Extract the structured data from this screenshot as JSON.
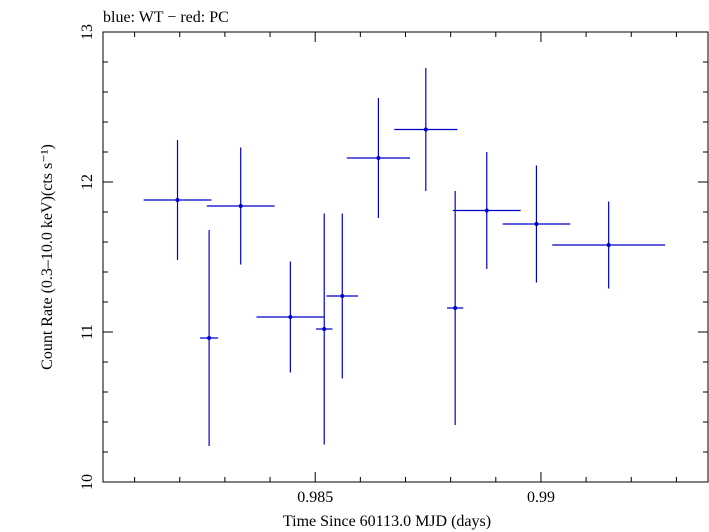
{
  "chart_data": {
    "type": "scatter",
    "title": "blue: WT − red: PC",
    "xlabel": "Time Since 60113.0 MJD (days)",
    "ylabel": "Count Rate (0.3–10.0 keV)(cts s⁻¹)",
    "xlim": [
      0.9803,
      0.9937
    ],
    "ylim": [
      10,
      13
    ],
    "x_ticks": [
      0.985,
      0.99
    ],
    "x_tick_labels": [
      "0.985",
      "0.99"
    ],
    "y_ticks": [
      10,
      11,
      12,
      13
    ],
    "y_tick_labels": [
      "10",
      "11",
      "12",
      "13"
    ],
    "grid": false,
    "series": [
      {
        "name": "WT",
        "color": "#0000cc",
        "points": [
          {
            "x": 0.98195,
            "xerr": 0.00075,
            "y": 11.88,
            "yerr": 0.4
          },
          {
            "x": 0.98265,
            "xerr": 0.0002,
            "y": 10.96,
            "yerr": 0.72
          },
          {
            "x": 0.98335,
            "xerr": 0.00075,
            "y": 11.84,
            "yerr": 0.39
          },
          {
            "x": 0.98445,
            "xerr": 0.00075,
            "y": 11.1,
            "yerr": 0.37
          },
          {
            "x": 0.9852,
            "xerr": 0.00018,
            "y": 11.02,
            "yerr": 0.77
          },
          {
            "x": 0.9856,
            "xerr": 0.00035,
            "y": 11.24,
            "yerr": 0.55
          },
          {
            "x": 0.9864,
            "xerr": 0.0007,
            "y": 12.16,
            "yerr": 0.4
          },
          {
            "x": 0.98745,
            "xerr": 0.0007,
            "y": 12.35,
            "yerr": 0.41
          },
          {
            "x": 0.9881,
            "xerr": 0.00018,
            "y": 11.16,
            "yerr": 0.78
          },
          {
            "x": 0.9888,
            "xerr": 0.00075,
            "y": 11.81,
            "yerr": 0.39
          },
          {
            "x": 0.9899,
            "xerr": 0.00075,
            "y": 11.72,
            "yerr": 0.39
          },
          {
            "x": 0.9915,
            "xerr": 0.00125,
            "y": 11.58,
            "yerr": 0.29
          }
        ]
      }
    ]
  }
}
